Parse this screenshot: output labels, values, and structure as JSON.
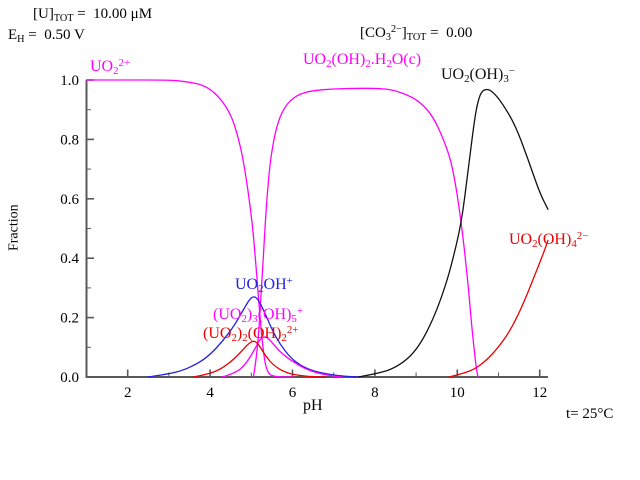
{
  "chart_data": {
    "type": "line",
    "title": "",
    "xlabel": "pH",
    "ylabel": "Fraction",
    "xlim": [
      1,
      12.2
    ],
    "ylim": [
      0.0,
      1.0
    ],
    "grid": false,
    "legend_position": "inline-labels",
    "x_major_ticks": [
      2,
      4,
      6,
      8,
      10,
      12
    ],
    "x_minor_ticks": [
      3,
      5,
      7,
      9,
      11
    ],
    "y_major_ticks": [
      0.0,
      0.2,
      0.4,
      0.6,
      0.8,
      1.0
    ],
    "y_major_labels": [
      "0.0",
      "0.2",
      "0.4",
      "0.6",
      "0.8",
      "1.0"
    ],
    "y_minor_ticks": [
      0.1,
      0.3,
      0.5,
      0.7,
      0.9
    ],
    "annotations": {
      "u_tot_parts": [
        [
          "t",
          "[U]"
        ],
        [
          "sub",
          "TOT"
        ],
        [
          "t",
          " =  10.00 μM"
        ]
      ],
      "eh_parts": [
        [
          "t",
          "E"
        ],
        [
          "sub",
          "H"
        ],
        [
          "t",
          " =  0.50 V"
        ]
      ],
      "co3_parts": [
        [
          "t",
          "[CO"
        ],
        [
          "sub",
          "3"
        ],
        [
          "sup",
          "2−"
        ],
        [
          "t",
          "]"
        ],
        [
          "sub",
          "TOT"
        ],
        [
          "t",
          " =  0.00"
        ]
      ],
      "temperature": "t= 25°C"
    },
    "labels": {
      "uranyl_parts": [
        [
          "t",
          "UO"
        ],
        [
          "sub",
          "2"
        ],
        [
          "sup",
          "2+"
        ]
      ],
      "solid_parts": [
        [
          "t",
          "UO"
        ],
        [
          "sub",
          "2"
        ],
        [
          "t",
          "(OH)"
        ],
        [
          "sub",
          "2"
        ],
        [
          "t",
          ".H"
        ],
        [
          "sub",
          "2"
        ],
        [
          "t",
          "O(c)"
        ]
      ],
      "trihydroxo_parts": [
        [
          "t",
          "UO"
        ],
        [
          "sub",
          "2"
        ],
        [
          "t",
          "(OH)"
        ],
        [
          "sub",
          "3"
        ],
        [
          "sup",
          "−"
        ]
      ],
      "tetrahydroxo_parts": [
        [
          "t",
          "UO"
        ],
        [
          "sub",
          "2"
        ],
        [
          "t",
          "(OH)"
        ],
        [
          "sub",
          "4"
        ],
        [
          "sup",
          "2−"
        ]
      ],
      "monohydroxo_parts": [
        [
          "t",
          "UO"
        ],
        [
          "sub",
          "2"
        ],
        [
          "t",
          "OH"
        ],
        [
          "sup",
          "+"
        ]
      ],
      "trimer_parts": [
        [
          "t",
          "(UO"
        ],
        [
          "sub",
          "2"
        ],
        [
          "t",
          ")"
        ],
        [
          "sub",
          "3"
        ],
        [
          "t",
          "(OH)"
        ],
        [
          "sub",
          "5"
        ],
        [
          "sup",
          "+"
        ]
      ],
      "dimer_parts": [
        [
          "t",
          "(UO"
        ],
        [
          "sub",
          "2"
        ],
        [
          "t",
          ")"
        ],
        [
          "sub",
          "2"
        ],
        [
          "t",
          "(OH)"
        ],
        [
          "sub",
          "2"
        ],
        [
          "sup",
          "2+"
        ]
      ]
    },
    "series": [
      {
        "id": "uranyl",
        "name": "UO2^2+",
        "color": "#ff00ff",
        "points": [
          [
            1.0,
            1.0
          ],
          [
            2.0,
            1.0
          ],
          [
            3.0,
            1.0
          ],
          [
            3.4,
            0.995
          ],
          [
            3.8,
            0.985
          ],
          [
            4.1,
            0.96
          ],
          [
            4.4,
            0.91
          ],
          [
            4.6,
            0.85
          ],
          [
            4.8,
            0.74
          ],
          [
            5.0,
            0.55
          ],
          [
            5.1,
            0.4
          ],
          [
            5.2,
            0.22
          ],
          [
            5.3,
            0.07
          ],
          [
            5.4,
            0.01
          ],
          [
            5.6,
            0.0
          ],
          [
            6.0,
            0.0
          ]
        ]
      },
      {
        "id": "solid",
        "name": "UO2(OH)2.H2O(c)",
        "color": "#ff00ff",
        "points": [
          [
            5.05,
            0.0
          ],
          [
            5.15,
            0.08
          ],
          [
            5.25,
            0.3
          ],
          [
            5.35,
            0.55
          ],
          [
            5.45,
            0.72
          ],
          [
            5.6,
            0.84
          ],
          [
            5.8,
            0.91
          ],
          [
            6.1,
            0.95
          ],
          [
            6.5,
            0.965
          ],
          [
            7.0,
            0.97
          ],
          [
            7.5,
            0.972
          ],
          [
            8.0,
            0.972
          ],
          [
            8.4,
            0.968
          ],
          [
            8.8,
            0.95
          ],
          [
            9.1,
            0.925
          ],
          [
            9.4,
            0.88
          ],
          [
            9.7,
            0.79
          ],
          [
            9.9,
            0.7
          ],
          [
            10.1,
            0.52
          ],
          [
            10.25,
            0.33
          ],
          [
            10.35,
            0.17
          ],
          [
            10.45,
            0.04
          ],
          [
            10.5,
            0.0
          ]
        ]
      },
      {
        "id": "trihydroxo",
        "name": "UO2(OH)3^-",
        "color": "#111111",
        "points": [
          [
            7.6,
            0.0
          ],
          [
            8.0,
            0.01
          ],
          [
            8.4,
            0.025
          ],
          [
            8.8,
            0.06
          ],
          [
            9.1,
            0.11
          ],
          [
            9.4,
            0.19
          ],
          [
            9.7,
            0.3
          ],
          [
            9.9,
            0.4
          ],
          [
            10.1,
            0.52
          ],
          [
            10.25,
            0.68
          ],
          [
            10.4,
            0.85
          ],
          [
            10.5,
            0.93
          ],
          [
            10.6,
            0.965
          ],
          [
            10.75,
            0.97
          ],
          [
            10.9,
            0.955
          ],
          [
            11.1,
            0.92
          ],
          [
            11.4,
            0.85
          ],
          [
            11.7,
            0.74
          ],
          [
            12.0,
            0.62
          ],
          [
            12.2,
            0.565
          ]
        ]
      },
      {
        "id": "tetrahydroxo",
        "name": "UO2(OH)4^2-",
        "color": "#ee0000",
        "points": [
          [
            9.8,
            0.0
          ],
          [
            10.1,
            0.01
          ],
          [
            10.4,
            0.025
          ],
          [
            10.7,
            0.055
          ],
          [
            11.0,
            0.1
          ],
          [
            11.3,
            0.16
          ],
          [
            11.6,
            0.245
          ],
          [
            11.9,
            0.35
          ],
          [
            12.1,
            0.42
          ],
          [
            12.2,
            0.46
          ]
        ]
      },
      {
        "id": "monohydroxo",
        "name": "UO2OH^+",
        "color": "#2222dd",
        "points": [
          [
            2.5,
            0.0
          ],
          [
            2.9,
            0.008
          ],
          [
            3.3,
            0.02
          ],
          [
            3.7,
            0.045
          ],
          [
            4.0,
            0.075
          ],
          [
            4.3,
            0.12
          ],
          [
            4.6,
            0.175
          ],
          [
            4.8,
            0.225
          ],
          [
            4.95,
            0.26
          ],
          [
            5.05,
            0.272
          ],
          [
            5.15,
            0.265
          ],
          [
            5.3,
            0.225
          ],
          [
            5.5,
            0.16
          ],
          [
            5.7,
            0.11
          ],
          [
            5.95,
            0.065
          ],
          [
            6.2,
            0.038
          ],
          [
            6.5,
            0.02
          ],
          [
            6.9,
            0.008
          ],
          [
            7.3,
            0.002
          ],
          [
            7.6,
            0.0
          ]
        ]
      },
      {
        "id": "trimer",
        "name": "(UO2)3(OH)5^+",
        "color": "#ff00ff",
        "points": [
          [
            4.3,
            0.0
          ],
          [
            4.6,
            0.012
          ],
          [
            4.85,
            0.04
          ],
          [
            5.05,
            0.085
          ],
          [
            5.2,
            0.125
          ],
          [
            5.32,
            0.138
          ],
          [
            5.45,
            0.125
          ],
          [
            5.6,
            0.1
          ],
          [
            5.8,
            0.072
          ],
          [
            6.05,
            0.048
          ],
          [
            6.3,
            0.028
          ],
          [
            6.6,
            0.013
          ],
          [
            6.9,
            0.005
          ],
          [
            7.2,
            0.0
          ]
        ]
      },
      {
        "id": "dimer",
        "name": "(UO2)2(OH)2^2+",
        "color": "#ee0000",
        "points": [
          [
            3.6,
            0.0
          ],
          [
            3.9,
            0.008
          ],
          [
            4.2,
            0.022
          ],
          [
            4.5,
            0.05
          ],
          [
            4.75,
            0.085
          ],
          [
            4.95,
            0.115
          ],
          [
            5.08,
            0.123
          ],
          [
            5.2,
            0.105
          ],
          [
            5.35,
            0.07
          ],
          [
            5.55,
            0.038
          ],
          [
            5.8,
            0.017
          ],
          [
            6.1,
            0.006
          ],
          [
            6.5,
            0.001
          ],
          [
            6.8,
            0.0
          ]
        ]
      }
    ],
    "axis_color": "#595959"
  }
}
